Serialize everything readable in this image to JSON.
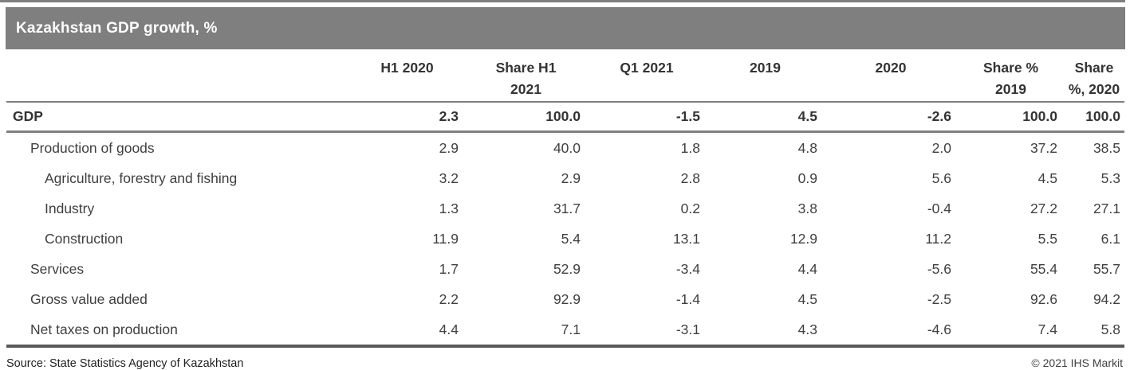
{
  "title_bar": {
    "title": "Kazakhstan GDP growth, %"
  },
  "colors": {
    "title_bar_bg": "#7f7f7f",
    "title_text": "#ffffff",
    "rule": "#808080",
    "heavy_rule": "#595959",
    "body_text": "#3f3f3f"
  },
  "chart_data": {
    "type": "table",
    "title": "Kazakhstan GDP growth, %",
    "columns": [
      "",
      "H1 2020",
      "Share H1\n2021",
      "Q1 2021",
      "2019",
      "2020",
      "Share %\n2019",
      "Share\n%, 2020"
    ],
    "rows": [
      {
        "label": "GDP",
        "indent": 0,
        "bold": true,
        "values": [
          2.3,
          100.0,
          -1.5,
          4.5,
          -2.6,
          100.0,
          100.0
        ]
      },
      {
        "label": "Production of goods",
        "indent": 1,
        "bold": false,
        "values": [
          2.9,
          40.0,
          1.8,
          4.8,
          2.0,
          37.2,
          38.5
        ]
      },
      {
        "label": "Agriculture, forestry and fishing",
        "indent": 2,
        "bold": false,
        "values": [
          3.2,
          2.9,
          2.8,
          0.9,
          5.6,
          4.5,
          5.3
        ]
      },
      {
        "label": "Industry",
        "indent": 2,
        "bold": false,
        "values": [
          1.3,
          31.7,
          0.2,
          3.8,
          -0.4,
          27.2,
          27.1
        ]
      },
      {
        "label": "Construction",
        "indent": 2,
        "bold": false,
        "values": [
          11.9,
          5.4,
          13.1,
          12.9,
          11.2,
          5.5,
          6.1
        ]
      },
      {
        "label": "Services",
        "indent": 1,
        "bold": false,
        "values": [
          1.7,
          52.9,
          -3.4,
          4.4,
          -5.6,
          55.4,
          55.7
        ]
      },
      {
        "label": "Gross value added",
        "indent": 1,
        "bold": false,
        "values": [
          2.2,
          92.9,
          -1.4,
          4.5,
          -2.5,
          92.6,
          94.2
        ]
      },
      {
        "label": "Net taxes on production",
        "indent": 1,
        "bold": false,
        "values": [
          4.4,
          7.1,
          -3.1,
          4.3,
          -4.6,
          7.4,
          5.8
        ]
      }
    ]
  },
  "footer": {
    "source": "Source: State Statistics Agency of Kazakhstan",
    "copyright": "© 2021 IHS Markit"
  }
}
